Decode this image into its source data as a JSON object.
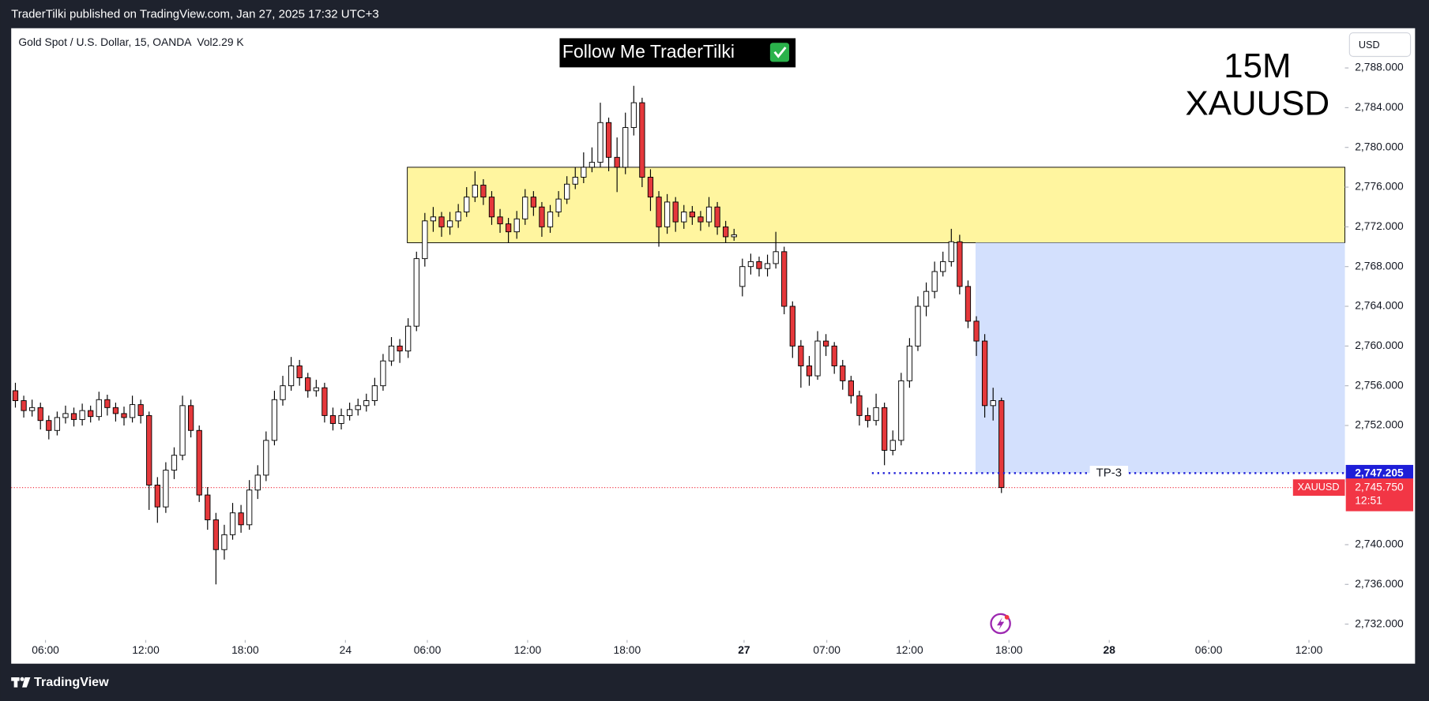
{
  "header": {
    "published": "TraderTilki published on TradingView.com, Jan 27, 2025 17:32 UTC+3",
    "footer": "TradingView"
  },
  "chart_data": {
    "type": "candlestick",
    "symbol_info": "Gold Spot / U.S. Dollar, 15, OANDA",
    "volume_label": "Vol",
    "volume": "2.29 K",
    "banner": "Follow Me TraderTilki",
    "annotations": [
      "15M",
      "XAUUSD"
    ],
    "currency": "USD",
    "up_color": "#ffffff",
    "down_color": "#e5383b",
    "border_color": "#000000",
    "xlim": [
      -0.5,
      159.1
    ],
    "ylim": [
      2730.4,
      2792.0
    ],
    "xticks": [
      {
        "value": 3.6,
        "label": "06:00"
      },
      {
        "value": 15.6,
        "label": "12:00"
      },
      {
        "value": 27.5,
        "label": "18:00"
      },
      {
        "value": 39.5,
        "label": "24"
      },
      {
        "value": 49.3,
        "label": "06:00"
      },
      {
        "value": 61.3,
        "label": "12:00"
      },
      {
        "value": 73.2,
        "label": "18:00"
      },
      {
        "value": 87.2,
        "label": "27"
      },
      {
        "value": 97.1,
        "label": "07:00"
      },
      {
        "value": 107.0,
        "label": "12:00"
      },
      {
        "value": 118.9,
        "label": "18:00"
      },
      {
        "value": 130.9,
        "label": "28"
      },
      {
        "value": 142.8,
        "label": "06:00"
      },
      {
        "value": 154.8,
        "label": "12:00"
      }
    ],
    "yticks": [
      {
        "value": 2732,
        "label": "2,732.000"
      },
      {
        "value": 2736,
        "label": "2,736.000"
      },
      {
        "value": 2740,
        "label": "2,740.000"
      },
      {
        "value": 2752,
        "label": "2,752.000"
      },
      {
        "value": 2756,
        "label": "2,756.000"
      },
      {
        "value": 2760,
        "label": "2,760.000"
      },
      {
        "value": 2764,
        "label": "2,764.000"
      },
      {
        "value": 2768,
        "label": "2,768.000"
      },
      {
        "value": 2772,
        "label": "2,772.000"
      },
      {
        "value": 2776,
        "label": "2,776.000"
      },
      {
        "value": 2780,
        "label": "2,780.000"
      },
      {
        "value": 2784,
        "label": "2,784.000"
      },
      {
        "value": 2788,
        "label": "2,788.000"
      }
    ],
    "zones": [
      {
        "x_start": 46.9,
        "ymin": 2770.4,
        "ymax": 2778.0,
        "color": "#fff59f"
      },
      {
        "x_start": 114.9,
        "ymin": 2747.205,
        "ymax": 2770.4,
        "color": "#d3e0fd"
      }
    ],
    "target": {
      "x_start": 102.5,
      "value": 2747.205,
      "value_label": "2,747.205",
      "label": "TP-3",
      "color": "#1e1ed8"
    },
    "last_price": {
      "value": 2745.75,
      "value_label": "2,745.750",
      "countdown": "12:51",
      "color": "#f23645"
    },
    "series": [
      {
        "name": "XAUUSD",
        "open": [
          2755.5,
          2754.5,
          2753.5,
          2753.8,
          2752.5,
          2751.5,
          2752.8,
          2753.2,
          2752.6,
          2753.5,
          2752.9,
          2754.6,
          2753.8,
          2753.2,
          2752.8,
          2754.1,
          2753.0,
          2746.0,
          2743.8,
          2747.5,
          2749.0,
          2754.0,
          2751.5,
          2745.0,
          2742.5,
          2739.5,
          2741.0,
          2743.2,
          2742.0,
          2745.5,
          2747.0,
          2750.5,
          2754.6,
          2756.0,
          2758.0,
          2756.8,
          2755.5,
          2755.8,
          2753.0,
          2752.2,
          2753.0,
          2753.6,
          2754.0,
          2754.5,
          2756.0,
          2758.5,
          2760.0,
          2759.5,
          2762.0,
          2768.8,
          2772.6,
          2773.0,
          2772.0,
          2772.6,
          2773.5,
          2775.0,
          2776.2,
          2775.0,
          2773.0,
          2772.3,
          2771.5,
          2772.8,
          2775.0,
          2774.0,
          2772.0,
          2773.5,
          2774.8,
          2776.3,
          2777.0,
          2778.0,
          2778.5,
          2782.5,
          2779.0,
          2778.0,
          2782.0,
          2784.5,
          2777.0,
          2775.0,
          2772.0,
          2774.5,
          2772.5,
          2773.5,
          2773.0,
          2772.5,
          2774.0,
          2772.0,
          2771.0,
          2766.0,
          2768.0,
          2768.5,
          2767.8,
          2768.3,
          2769.5,
          2764.0,
          2760.0,
          2758.0,
          2757.0,
          2760.5,
          2760.0,
          2758.0,
          2756.5,
          2755.0,
          2753.0,
          2752.5,
          2753.8,
          2749.5,
          2750.5,
          2756.5,
          2760.0,
          2764.0,
          2765.5,
          2767.5,
          2768.5,
          2770.5,
          2766.0,
          2762.5,
          2760.5,
          2754.0,
          2754.5
        ],
        "high": [
          2756.3,
          2755.0,
          2754.6,
          2754.3,
          2753.0,
          2753.4,
          2754.0,
          2753.8,
          2754.2,
          2754.0,
          2755.4,
          2755.1,
          2754.3,
          2753.9,
          2755.0,
          2754.6,
          2753.4,
          2746.8,
          2748.3,
          2749.8,
          2755.0,
          2754.6,
          2752.0,
          2745.8,
          2743.2,
          2742.0,
          2744.2,
          2744.0,
          2746.5,
          2748.0,
          2751.4,
          2755.5,
          2757.0,
          2758.9,
          2758.6,
          2757.3,
          2756.6,
          2756.3,
          2753.8,
          2753.7,
          2754.3,
          2754.7,
          2755.2,
          2756.8,
          2759.2,
          2760.9,
          2760.7,
          2762.8,
          2769.5,
          2773.4,
          2774.0,
          2773.5,
          2773.5,
          2774.3,
          2776.0,
          2777.6,
          2776.8,
          2775.6,
          2773.8,
          2772.9,
          2773.6,
          2775.8,
          2775.6,
          2774.5,
          2774.2,
          2775.6,
          2777.1,
          2778.0,
          2779.5,
          2780.0,
          2784.5,
          2783.0,
          2781.0,
          2783.5,
          2786.2,
          2785.0,
          2777.8,
          2775.6,
          2775.3,
          2775.0,
          2774.2,
          2774.1,
          2773.6,
          2775.0,
          2774.5,
          2772.6,
          2771.8,
          2768.8,
          2769.3,
          2769.0,
          2769.2,
          2771.5,
          2770.0,
          2764.5,
          2760.6,
          2759.0,
          2761.5,
          2761.2,
          2760.4,
          2758.6,
          2757.0,
          2755.5,
          2753.8,
          2755.2,
          2754.3,
          2751.5,
          2757.3,
          2760.8,
          2765.0,
          2766.4,
          2768.5,
          2769.5,
          2771.8,
          2771.2,
          2766.6,
          2763.0,
          2761.2,
          2755.8,
          2754.8
        ],
        "low": [
          2753.8,
          2752.8,
          2752.9,
          2751.6,
          2750.6,
          2751.0,
          2752.2,
          2751.9,
          2752.0,
          2752.3,
          2752.5,
          2753.0,
          2752.4,
          2752.0,
          2752.3,
          2752.2,
          2743.5,
          2742.2,
          2743.2,
          2746.6,
          2748.5,
          2750.8,
          2744.3,
          2741.5,
          2736.0,
          2738.5,
          2740.5,
          2741.2,
          2741.5,
          2744.6,
          2746.4,
          2750.0,
          2754.0,
          2755.5,
          2756.0,
          2754.8,
          2754.9,
          2752.3,
          2751.5,
          2751.6,
          2752.5,
          2753.0,
          2753.4,
          2754.0,
          2755.5,
          2758.0,
          2758.3,
          2758.8,
          2761.5,
          2768.0,
          2771.5,
          2771.0,
          2771.2,
          2771.9,
          2773.0,
          2774.5,
          2774.2,
          2772.2,
          2771.4,
          2770.4,
          2770.8,
          2772.2,
          2773.1,
          2771.0,
          2771.4,
          2773.0,
          2774.3,
          2775.8,
          2776.4,
          2777.5,
          2778.0,
          2777.6,
          2775.5,
          2777.3,
          2781.2,
          2776.0,
          2773.6,
          2770.0,
          2771.3,
          2771.5,
          2771.8,
          2772.2,
          2771.6,
          2772.0,
          2771.2,
          2770.4,
          2770.6,
          2765.0,
          2767.2,
          2767.0,
          2767.0,
          2767.8,
          2763.2,
          2758.8,
          2755.8,
          2756.0,
          2756.6,
          2759.0,
          2757.2,
          2755.6,
          2754.2,
          2752.0,
          2751.8,
          2752.0,
          2748.0,
          2749.0,
          2750.0,
          2755.8,
          2759.5,
          2763.0,
          2764.8,
          2767.0,
          2768.0,
          2765.2,
          2761.8,
          2759.0,
          2752.8,
          2752.5,
          2745.2
        ],
        "close": [
          2754.5,
          2753.5,
          2753.8,
          2752.5,
          2751.5,
          2752.8,
          2753.2,
          2752.6,
          2753.5,
          2752.9,
          2754.6,
          2753.8,
          2753.2,
          2752.8,
          2754.1,
          2753.0,
          2746.0,
          2743.8,
          2747.5,
          2749.0,
          2754.0,
          2751.5,
          2745.0,
          2742.5,
          2739.5,
          2741.0,
          2743.2,
          2742.0,
          2745.5,
          2747.0,
          2750.5,
          2754.6,
          2756.0,
          2758.0,
          2756.8,
          2755.5,
          2755.8,
          2753.0,
          2752.2,
          2753.0,
          2753.6,
          2754.0,
          2754.5,
          2756.0,
          2758.5,
          2760.0,
          2759.5,
          2762.0,
          2768.8,
          2772.6,
          2773.0,
          2772.0,
          2772.6,
          2773.5,
          2775.0,
          2776.2,
          2775.0,
          2773.0,
          2772.3,
          2771.5,
          2772.8,
          2775.0,
          2774.0,
          2772.0,
          2773.5,
          2774.8,
          2776.3,
          2777.0,
          2778.0,
          2778.5,
          2782.5,
          2779.0,
          2778.0,
          2782.0,
          2784.5,
          2777.0,
          2775.0,
          2772.0,
          2774.5,
          2772.5,
          2773.5,
          2773.0,
          2772.5,
          2774.0,
          2772.0,
          2771.0,
          2771.2,
          2768.0,
          2768.5,
          2767.8,
          2768.3,
          2769.5,
          2764.0,
          2760.0,
          2758.0,
          2757.0,
          2760.5,
          2760.0,
          2758.0,
          2756.5,
          2755.0,
          2753.0,
          2752.5,
          2753.8,
          2749.5,
          2750.5,
          2756.5,
          2760.0,
          2764.0,
          2765.5,
          2767.5,
          2768.5,
          2770.5,
          2766.0,
          2762.5,
          2760.5,
          2754.0,
          2754.5,
          2745.75
        ]
      }
    ]
  }
}
